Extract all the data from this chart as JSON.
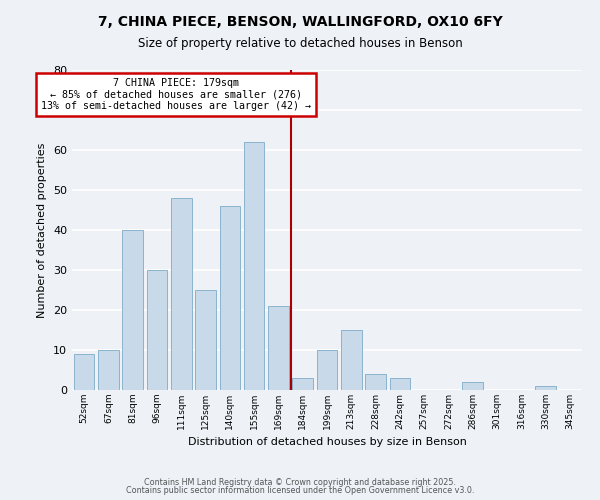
{
  "title": "7, CHINA PIECE, BENSON, WALLINGFORD, OX10 6FY",
  "subtitle": "Size of property relative to detached houses in Benson",
  "xlabel": "Distribution of detached houses by size in Benson",
  "ylabel": "Number of detached properties",
  "categories": [
    "52sqm",
    "67sqm",
    "81sqm",
    "96sqm",
    "111sqm",
    "125sqm",
    "140sqm",
    "155sqm",
    "169sqm",
    "184sqm",
    "199sqm",
    "213sqm",
    "228sqm",
    "242sqm",
    "257sqm",
    "272sqm",
    "286sqm",
    "301sqm",
    "316sqm",
    "330sqm",
    "345sqm"
  ],
  "values": [
    9,
    10,
    40,
    30,
    48,
    25,
    46,
    62,
    21,
    3,
    10,
    15,
    4,
    3,
    0,
    0,
    2,
    0,
    0,
    1,
    0
  ],
  "bar_color": "#c8daea",
  "bar_edge_color": "#8ab4cc",
  "marker_line_index": 8.5,
  "marker_label": "7 CHINA PIECE: 179sqm",
  "annotation_line1": "← 85% of detached houses are smaller (276)",
  "annotation_line2": "13% of semi-detached houses are larger (42) →",
  "annotation_box_color": "#cc0000",
  "ylim": [
    0,
    80
  ],
  "yticks": [
    0,
    10,
    20,
    30,
    40,
    50,
    60,
    70,
    80
  ],
  "background_color": "#eef2f7",
  "grid_color": "#ffffff",
  "footnote1": "Contains HM Land Registry data © Crown copyright and database right 2025.",
  "footnote2": "Contains public sector information licensed under the Open Government Licence v3.0."
}
